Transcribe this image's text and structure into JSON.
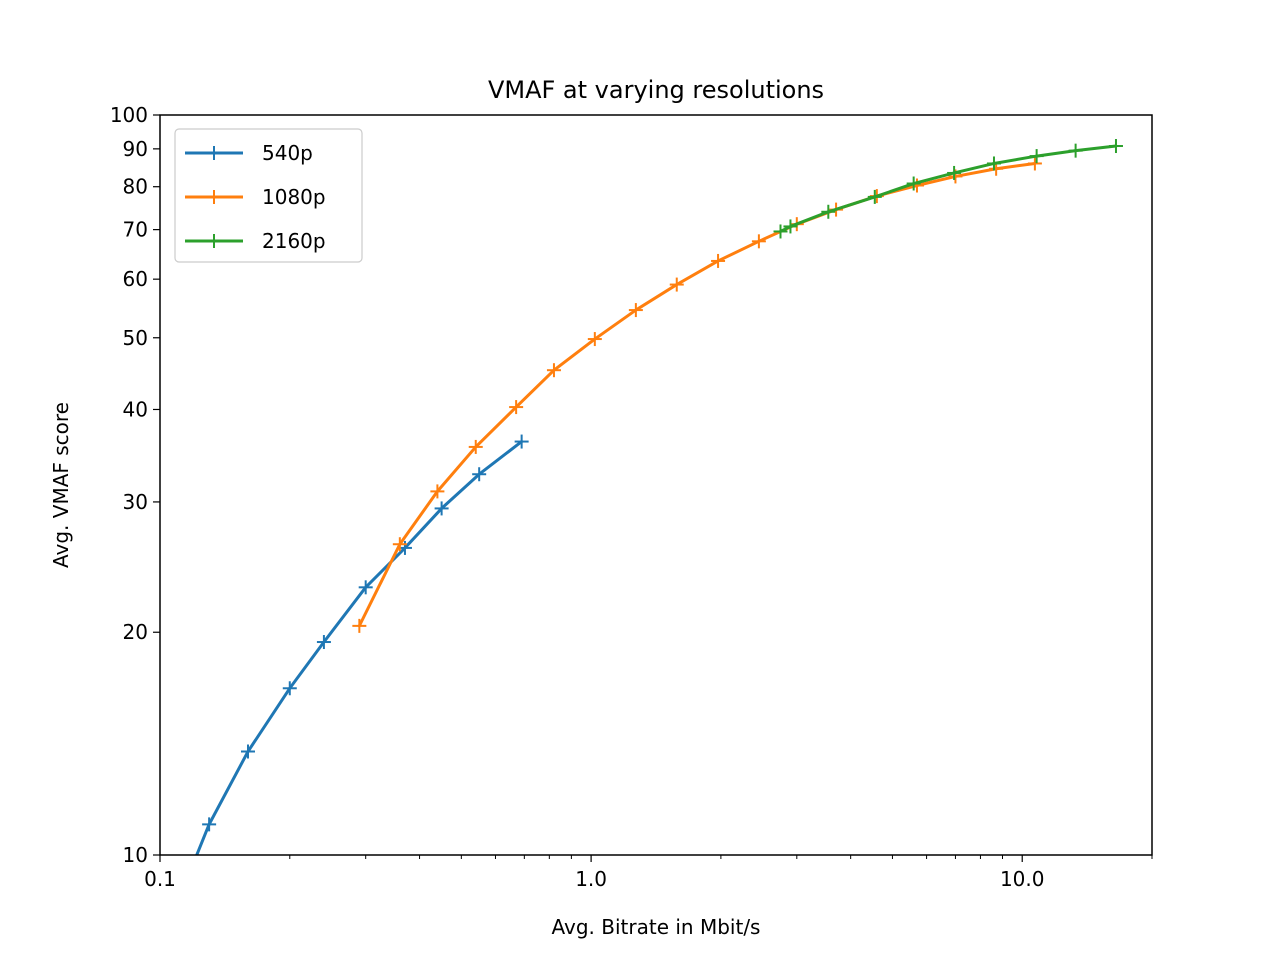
{
  "chart_data": {
    "type": "line",
    "title": "VMAF at varying resolutions",
    "xlabel": "Avg. Bitrate in Mbit/s",
    "ylabel": "Avg. VMAF score",
    "xscale": "log",
    "yscale": "log",
    "xlim": [
      0.1,
      20
    ],
    "ylim": [
      10,
      100
    ],
    "xticks": [
      {
        "value": 0.1,
        "label": "0.1"
      },
      {
        "value": 1.0,
        "label": "1.0"
      },
      {
        "value": 10.0,
        "label": "10.0"
      }
    ],
    "yticks": [
      {
        "value": 10,
        "label": "10"
      },
      {
        "value": 20,
        "label": "20"
      },
      {
        "value": 30,
        "label": "30"
      },
      {
        "value": 40,
        "label": "40"
      },
      {
        "value": 50,
        "label": "50"
      },
      {
        "value": 60,
        "label": "60"
      },
      {
        "value": 70,
        "label": "70"
      },
      {
        "value": 80,
        "label": "80"
      },
      {
        "value": 90,
        "label": "90"
      },
      {
        "value": 100,
        "label": "100"
      }
    ],
    "grid": false,
    "legend": "top-left",
    "series": [
      {
        "name": "540p",
        "color": "#1f77b4",
        "marker": "plus",
        "points": [
          [
            0.12,
            9.8
          ],
          [
            0.13,
            11.0
          ],
          [
            0.16,
            13.8
          ],
          [
            0.2,
            16.8
          ],
          [
            0.24,
            19.4
          ],
          [
            0.3,
            23.0
          ],
          [
            0.37,
            26.0
          ],
          [
            0.45,
            29.4
          ],
          [
            0.55,
            32.7
          ],
          [
            0.69,
            36.2
          ]
        ]
      },
      {
        "name": "1080p",
        "color": "#ff7f0e",
        "marker": "plus",
        "points": [
          [
            0.29,
            20.4
          ],
          [
            0.36,
            26.3
          ],
          [
            0.44,
            31.0
          ],
          [
            0.54,
            35.6
          ],
          [
            0.67,
            40.3
          ],
          [
            0.82,
            45.2
          ],
          [
            1.02,
            49.8
          ],
          [
            1.27,
            54.5
          ],
          [
            1.58,
            59.0
          ],
          [
            1.97,
            63.5
          ],
          [
            2.45,
            67.5
          ],
          [
            3.0,
            71.2
          ],
          [
            3.7,
            74.5
          ],
          [
            4.6,
            77.7
          ],
          [
            5.7,
            80.3
          ],
          [
            7.0,
            82.6
          ],
          [
            8.7,
            84.6
          ],
          [
            10.7,
            86.0
          ]
        ]
      },
      {
        "name": "2160p",
        "color": "#2ca02c",
        "marker": "plus",
        "points": [
          [
            2.75,
            69.6
          ],
          [
            2.9,
            70.7
          ],
          [
            3.55,
            74.0
          ],
          [
            4.55,
            77.5
          ],
          [
            5.6,
            80.8
          ],
          [
            6.95,
            83.5
          ],
          [
            8.6,
            86.0
          ],
          [
            10.8,
            88.0
          ],
          [
            13.3,
            89.5
          ],
          [
            16.5,
            90.8
          ]
        ]
      }
    ]
  }
}
